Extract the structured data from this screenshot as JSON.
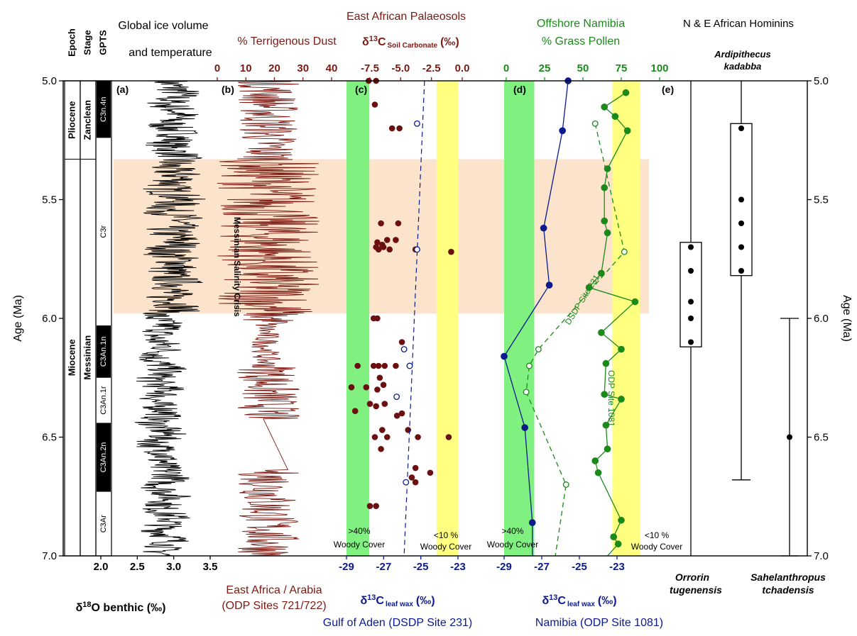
{
  "colors": {
    "black": "#000000",
    "dust": "#7a1a12",
    "soil": "#7a1a12",
    "navy": "#0b1a8c",
    "green": "#1b8a1b",
    "woody_green": "#80f080",
    "woody_yellow": "#ffff80",
    "msc": "#fbe3cc",
    "dot": "#6b1010"
  },
  "texts": {
    "epoch_header": "Epoch",
    "stage_header": "Stage",
    "gpts_header": "GPTS",
    "ice_title_1": "Global ice volume",
    "ice_title_2": "and temperature",
    "dust_title": "% Terrigenous Dust",
    "palaeosol_title": "East African Palaeosols",
    "soil_axis_delta": "δ",
    "soil_axis_13": "13",
    "soil_axis_c": "C",
    "soil_axis_sub": "Soil Carbonate",
    "soil_axis_unit": "(‰)",
    "namibia_title_1": "Offshore Namibia",
    "namibia_title_2": "% Grass Pollen",
    "hominin_title": "N & E African Hominins",
    "ardi_1": "Ardipithecus",
    "ardi_2": "kadabba",
    "age_label": "Age (Ma)",
    "d18o_delta": "δ",
    "d18o_18": "18",
    "d18o_rest": "O benthic (‰)",
    "dust_bottom_1": "East Africa / Arabia",
    "dust_bottom_2": "(ODP Sites 721/722)",
    "leaf_delta": "δ",
    "leaf_13": "13",
    "leaf_c": "C",
    "leaf_sub": "leaf wax",
    "leaf_unit": "(‰)",
    "gulf_label": "Gulf of Aden (DSDP Site 231)",
    "namibia_label": "Namibia (ODP Site 1081)",
    "orrorin_1": "Orrorin",
    "orrorin_2": "tugenensis",
    "sahel_1": "Sahelanthropus",
    "sahel_2": "tchadensis",
    "msc_label": "Messinian Salinity Crisis",
    "dsdp_label": "DSDP Site 231",
    "odp_label": "ODP Site 1081",
    "woody40_1": ">40%",
    "woody40_2": "Woody Cover",
    "woody10_1": "<10 %",
    "woody10_2": "Woody Cover",
    "panel_a": "(a)",
    "panel_b": "(b)",
    "panel_c": "(c)",
    "panel_d": "(d)",
    "panel_e": "(e)"
  },
  "chart_data": {
    "type": "line",
    "y_axis": {
      "label": "Age (Ma)",
      "range": [
        5.0,
        7.0
      ],
      "ticks": [
        "5.0",
        "5.5",
        "6.0",
        "6.5",
        "7.0"
      ],
      "inverted": true
    },
    "epochs": [
      {
        "name": "Pliocene",
        "from": 5.0,
        "to": 5.33
      },
      {
        "name": "Miocene",
        "from": 5.33,
        "to": 7.0
      }
    ],
    "stages": [
      {
        "name": "Zanclean",
        "from": 5.0,
        "to": 5.33
      },
      {
        "name": "Messinian",
        "from": 5.33,
        "to": 7.0
      }
    ],
    "gpts": [
      {
        "name": "C3n.4n",
        "from": 5.0,
        "to": 5.24,
        "normal": true
      },
      {
        "name": "C3r",
        "from": 5.24,
        "to": 6.03,
        "normal": false
      },
      {
        "name": "C3An.1n",
        "from": 6.03,
        "to": 6.25,
        "normal": true
      },
      {
        "name": "C3An.1r",
        "from": 6.25,
        "to": 6.44,
        "normal": false
      },
      {
        "name": "C3An.2n",
        "from": 6.44,
        "to": 6.73,
        "normal": true
      },
      {
        "name": "C3Ar",
        "from": 6.73,
        "to": 7.0,
        "normal": false
      }
    ],
    "msc": {
      "label": "Messinian Salinity Crisis",
      "from": 5.33,
      "to": 5.98
    },
    "d18o_axis": {
      "ticks": [
        "2.0",
        "2.5",
        "3.0",
        "3.5"
      ],
      "range": [
        2.0,
        3.5
      ]
    },
    "dust_axis": {
      "ticks": [
        "0",
        "10",
        "20",
        "30",
        "40"
      ],
      "range": [
        0,
        40
      ]
    },
    "soil_axis": {
      "ticks": [
        "-7.5",
        "-5.0",
        "-2.5",
        "0.0"
      ],
      "range": [
        -7.5,
        0.0
      ]
    },
    "leaf_axis_gulf": {
      "ticks": [
        "-29",
        "-27",
        "-25",
        "-23"
      ],
      "range": [
        -29,
        -23
      ]
    },
    "leaf_axis_namibia": {
      "ticks": [
        "-29",
        "-27",
        "-25",
        "-23"
      ],
      "range": [
        -29,
        -23
      ]
    },
    "pollen_axis": {
      "ticks": [
        "0",
        "25",
        "50",
        "75",
        "100"
      ],
      "range": [
        0,
        100
      ]
    },
    "woody_bands": {
      "gulf_green": [
        -29,
        -28
      ],
      "gulf_yellow": [
        -24,
        -23
      ],
      "namibia_green": [
        -29,
        -28
      ],
      "namibia_yellow": [
        -24,
        -23
      ]
    },
    "soil_carbonate": [
      {
        "age": 5.0,
        "d13c": -7.6
      },
      {
        "age": 5.0,
        "d13c": -7.0
      },
      {
        "age": 5.1,
        "d13c": -7.1
      },
      {
        "age": 5.2,
        "d13c": -5.7
      },
      {
        "age": 5.2,
        "d13c": -5.1
      },
      {
        "age": 5.6,
        "d13c": -6.6
      },
      {
        "age": 5.6,
        "d13c": -5.2
      },
      {
        "age": 5.67,
        "d13c": -6.1
      },
      {
        "age": 5.67,
        "d13c": -5.4
      },
      {
        "age": 5.68,
        "d13c": -6.9
      },
      {
        "age": 5.69,
        "d13c": -6.5
      },
      {
        "age": 5.7,
        "d13c": -7.0
      },
      {
        "age": 5.7,
        "d13c": -6.4
      },
      {
        "age": 5.71,
        "d13c": -6.8
      },
      {
        "age": 5.71,
        "d13c": -5.9
      },
      {
        "age": 5.71,
        "d13c": -3.8
      },
      {
        "age": 5.72,
        "d13c": -0.9
      },
      {
        "age": 6.0,
        "d13c": -7.2
      },
      {
        "age": 6.0,
        "d13c": -6.9
      },
      {
        "age": 6.1,
        "d13c": -4.9
      },
      {
        "age": 6.2,
        "d13c": -8.5
      },
      {
        "age": 6.2,
        "d13c": -7.2
      },
      {
        "age": 6.2,
        "d13c": -6.8
      },
      {
        "age": 6.2,
        "d13c": -6.3
      },
      {
        "age": 6.2,
        "d13c": -5.4
      },
      {
        "age": 6.25,
        "d13c": -6.7
      },
      {
        "age": 6.28,
        "d13c": -6.4
      },
      {
        "age": 6.29,
        "d13c": -9.0
      },
      {
        "age": 6.29,
        "d13c": -7.8
      },
      {
        "age": 6.3,
        "d13c": -6.9
      },
      {
        "age": 6.36,
        "d13c": -7.5
      },
      {
        "age": 6.36,
        "d13c": -6.3
      },
      {
        "age": 6.37,
        "d13c": -7.0
      },
      {
        "age": 6.39,
        "d13c": -8.7
      },
      {
        "age": 6.4,
        "d13c": -4.9
      },
      {
        "age": 6.41,
        "d13c": -5.3
      },
      {
        "age": 6.47,
        "d13c": -6.5
      },
      {
        "age": 6.47,
        "d13c": -4.4
      },
      {
        "age": 6.5,
        "d13c": -7.1
      },
      {
        "age": 6.5,
        "d13c": -6.1
      },
      {
        "age": 6.5,
        "d13c": -3.6
      },
      {
        "age": 6.5,
        "d13c": -1.1
      },
      {
        "age": 6.55,
        "d13c": -6.6
      },
      {
        "age": 6.63,
        "d13c": -3.8
      },
      {
        "age": 6.65,
        "d13c": -2.6
      },
      {
        "age": 6.67,
        "d13c": -4.1
      },
      {
        "age": 6.69,
        "d13c": -3.8
      },
      {
        "age": 6.79,
        "d13c": -7.5
      },
      {
        "age": 6.79,
        "d13c": -7.0
      }
    ],
    "series": [
      {
        "name": "Gulf of Aden (DSDP Site 231)",
        "axis": "leaf_gulf",
        "style": "dashed-open",
        "trend_top": -24.8,
        "trend_bottom": -25.9,
        "points": [
          {
            "age": 5.18,
            "d13c": -25.2
          },
          {
            "age": 5.71,
            "d13c": -25.2
          },
          {
            "age": 6.13,
            "d13c": -25.9
          },
          {
            "age": 6.2,
            "d13c": -25.6
          },
          {
            "age": 6.33,
            "d13c": -26.3
          },
          {
            "age": 6.69,
            "d13c": -25.8
          }
        ]
      },
      {
        "name": "DSDP Site 231",
        "axis": "pollen",
        "style": "dashed-open",
        "points": [
          {
            "age": 5.18,
            "v": 58
          },
          {
            "age": 5.72,
            "v": 77
          },
          {
            "age": 6.13,
            "v": 21
          },
          {
            "age": 6.2,
            "v": 15
          },
          {
            "age": 6.31,
            "v": 13
          },
          {
            "age": 6.7,
            "v": 39
          }
        ]
      },
      {
        "name": "ODP Site 1081",
        "axis": "pollen",
        "style": "solid-filled",
        "points": [
          {
            "age": 5.05,
            "v": 78
          },
          {
            "age": 5.11,
            "v": 64
          },
          {
            "age": 5.15,
            "v": 71
          },
          {
            "age": 5.21,
            "v": 79
          },
          {
            "age": 5.37,
            "v": 66
          },
          {
            "age": 5.45,
            "v": 64
          },
          {
            "age": 5.59,
            "v": 64
          },
          {
            "age": 5.64,
            "v": 66
          },
          {
            "age": 5.81,
            "v": 62
          },
          {
            "age": 5.87,
            "v": 54
          },
          {
            "age": 5.93,
            "v": 84
          },
          {
            "age": 6.06,
            "v": 62
          },
          {
            "age": 6.13,
            "v": 75
          },
          {
            "age": 6.19,
            "v": 65
          },
          {
            "age": 6.32,
            "v": 64
          },
          {
            "age": 6.34,
            "v": 75
          },
          {
            "age": 6.45,
            "v": 65
          },
          {
            "age": 6.55,
            "v": 66
          },
          {
            "age": 6.6,
            "v": 58
          },
          {
            "age": 6.65,
            "v": 60
          },
          {
            "age": 6.85,
            "v": 75
          },
          {
            "age": 6.92,
            "v": 70
          },
          {
            "age": 6.95,
            "v": 73
          }
        ]
      },
      {
        "name": "Namibia (ODP Site 1081)",
        "axis": "leaf_namibia",
        "style": "solid-navy",
        "points": [
          {
            "age": 5.0,
            "d13c": -25.6
          },
          {
            "age": 5.21,
            "d13c": -25.9
          },
          {
            "age": 5.62,
            "d13c": -26.9
          },
          {
            "age": 5.86,
            "d13c": -26.6
          },
          {
            "age": 6.16,
            "d13c": -29.0
          },
          {
            "age": 6.46,
            "d13c": -27.9
          },
          {
            "age": 6.86,
            "d13c": -27.5
          }
        ]
      }
    ],
    "hominins": [
      {
        "name": "Orrorin tugenensis",
        "range": [
          6.0,
          6.12
        ],
        "box": [
          5.68,
          6.12
        ],
        "points": [
          5.7,
          5.8,
          5.93,
          6.0,
          6.1
        ]
      },
      {
        "name": "Ardipithecus kadabba",
        "range": [
          5.0,
          6.68
        ],
        "box": [
          5.18,
          5.82
        ],
        "points": [
          5.2,
          5.5,
          5.6,
          5.7,
          5.8
        ]
      },
      {
        "name": "Sahelanthropus tchadensis",
        "range": [
          6.0,
          7.0
        ],
        "points": [
          6.5
        ]
      }
    ]
  }
}
